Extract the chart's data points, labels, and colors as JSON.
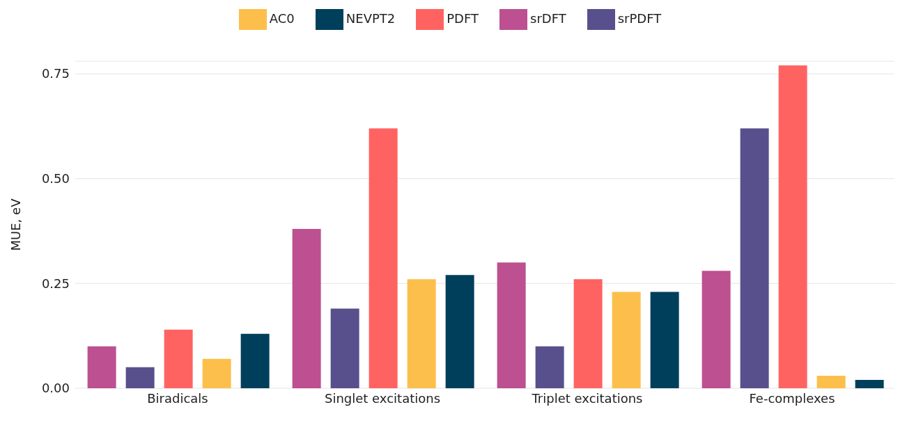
{
  "chart_data": {
    "type": "bar",
    "ylabel": "MUE, eV",
    "categories": [
      "Biradicals",
      "Singlet excitations",
      "Triplet excitations",
      "Fe-complexes"
    ],
    "series": [
      {
        "name": "srDFT",
        "color": "#bc5090",
        "values": [
          0.1,
          0.38,
          0.3,
          0.28
        ]
      },
      {
        "name": "srPDFT",
        "color": "#58508d",
        "values": [
          0.05,
          0.19,
          0.1,
          0.62
        ]
      },
      {
        "name": "PDFT",
        "color": "#ff6361",
        "values": [
          0.14,
          0.62,
          0.26,
          0.77
        ]
      },
      {
        "name": "AC0",
        "color": "#fdbf4b",
        "values": [
          0.07,
          0.26,
          0.23,
          0.03
        ]
      },
      {
        "name": "NEVPT2",
        "color": "#003f5c",
        "values": [
          0.13,
          0.27,
          0.23,
          0.02
        ]
      }
    ],
    "ylim": [
      0,
      0.78
    ],
    "yticks": [
      {
        "value": 0,
        "label": "0.00"
      },
      0.25,
      {
        "value": 0.5,
        "label": "0.50"
      },
      0.75
    ],
    "grid": "y",
    "legend": "top"
  }
}
